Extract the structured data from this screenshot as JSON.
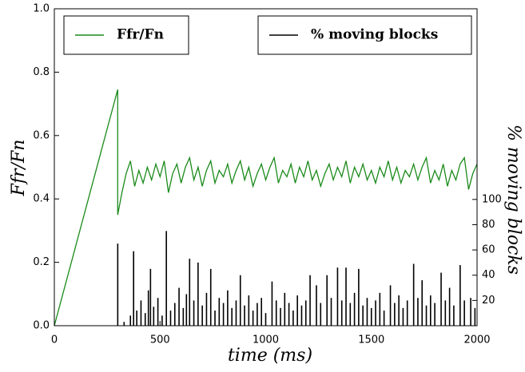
{
  "chart_data": {
    "type": "line",
    "xlabel": "time (ms)",
    "ylabel": "Ffr/Fn",
    "y2label": "% moving blocks",
    "xlim": [
      0,
      2000
    ],
    "xticks": [
      0,
      500,
      1000,
      1500,
      2000
    ],
    "ylim": [
      0,
      1
    ],
    "yticks": [
      {
        "value": 0,
        "label": "0.0"
      },
      0.2,
      0.4,
      0.6,
      0.8,
      {
        "value": 1,
        "label": "1.0"
      }
    ],
    "y2lim": [
      0,
      251
    ],
    "y2ticks": [
      20,
      40,
      60,
      80,
      100
    ],
    "series": [
      {
        "name": "Ffr/Fn",
        "color": "#1a8a1a",
        "legend_loc": "upper left",
        "x": [
          0,
          300,
          300,
          320,
          340,
          360,
          380,
          400,
          420,
          440,
          460,
          480,
          500,
          520,
          540,
          560,
          580,
          600,
          620,
          640,
          660,
          680,
          700,
          720,
          740,
          760,
          780,
          800,
          820,
          840,
          860,
          880,
          900,
          920,
          940,
          960,
          980,
          1000,
          1020,
          1040,
          1060,
          1080,
          1100,
          1120,
          1140,
          1160,
          1180,
          1200,
          1220,
          1240,
          1260,
          1280,
          1300,
          1320,
          1340,
          1360,
          1380,
          1400,
          1420,
          1440,
          1460,
          1480,
          1500,
          1520,
          1540,
          1560,
          1580,
          1600,
          1620,
          1640,
          1660,
          1680,
          1700,
          1720,
          1740,
          1760,
          1780,
          1800,
          1820,
          1840,
          1860,
          1880,
          1900,
          1920,
          1940,
          1960,
          1980,
          2000
        ],
        "values": [
          0,
          0.745,
          0.35,
          0.42,
          0.48,
          0.52,
          0.44,
          0.49,
          0.45,
          0.5,
          0.46,
          0.51,
          0.47,
          0.52,
          0.42,
          0.48,
          0.51,
          0.45,
          0.5,
          0.53,
          0.46,
          0.5,
          0.44,
          0.49,
          0.52,
          0.45,
          0.49,
          0.47,
          0.51,
          0.45,
          0.49,
          0.52,
          0.46,
          0.5,
          0.44,
          0.48,
          0.51,
          0.46,
          0.5,
          0.53,
          0.45,
          0.49,
          0.47,
          0.51,
          0.45,
          0.5,
          0.47,
          0.52,
          0.46,
          0.49,
          0.44,
          0.48,
          0.51,
          0.46,
          0.5,
          0.47,
          0.52,
          0.45,
          0.5,
          0.47,
          0.51,
          0.46,
          0.49,
          0.45,
          0.5,
          0.47,
          0.52,
          0.46,
          0.5,
          0.45,
          0.49,
          0.47,
          0.51,
          0.46,
          0.5,
          0.53,
          0.45,
          0.49,
          0.46,
          0.51,
          0.44,
          0.49,
          0.46,
          0.51,
          0.53,
          0.43,
          0.48,
          0.51
        ]
      },
      {
        "name": "% moving blocks",
        "color": "#000000",
        "axis": "y2",
        "drawstyle": "vlines",
        "legend_loc": "upper right",
        "x": [
          300,
          330,
          360,
          375,
          390,
          410,
          430,
          445,
          455,
          470,
          490,
          510,
          530,
          550,
          570,
          590,
          610,
          625,
          640,
          660,
          680,
          700,
          720,
          740,
          760,
          780,
          800,
          820,
          840,
          860,
          880,
          900,
          920,
          940,
          960,
          980,
          1000,
          1030,
          1050,
          1070,
          1090,
          1110,
          1130,
          1150,
          1170,
          1190,
          1210,
          1240,
          1260,
          1290,
          1310,
          1340,
          1360,
          1380,
          1400,
          1420,
          1440,
          1460,
          1480,
          1500,
          1520,
          1540,
          1560,
          1590,
          1610,
          1630,
          1650,
          1670,
          1700,
          1720,
          1740,
          1760,
          1780,
          1800,
          1830,
          1850,
          1870,
          1890,
          1920,
          1940,
          1970,
          1990
        ],
        "values": [
          65,
          3,
          8,
          59,
          12,
          20,
          10,
          28,
          45,
          15,
          22,
          8,
          75,
          12,
          18,
          30,
          14,
          25,
          53,
          20,
          50,
          16,
          26,
          45,
          12,
          22,
          18,
          28,
          14,
          20,
          40,
          16,
          24,
          12,
          18,
          22,
          10,
          35,
          20,
          14,
          26,
          18,
          12,
          24,
          16,
          20,
          40,
          32,
          18,
          40,
          22,
          46,
          20,
          46,
          18,
          26,
          45,
          16,
          22,
          14,
          20,
          26,
          12,
          32,
          18,
          24,
          14,
          20,
          49,
          22,
          36,
          16,
          24,
          18,
          42,
          20,
          30,
          16,
          48,
          20,
          22,
          14
        ]
      }
    ]
  }
}
